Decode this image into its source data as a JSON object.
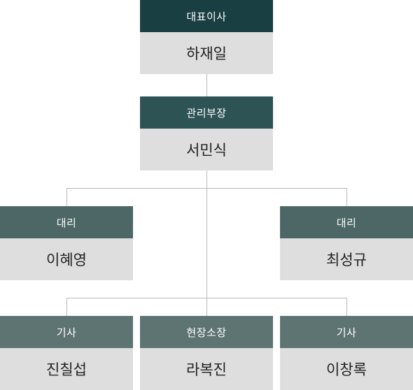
{
  "org_chart": {
    "ceo": {
      "role": "대표이사",
      "name": "하재일"
    },
    "manager": {
      "role": "관리부장",
      "name": "서민식"
    },
    "assistant_left": {
      "role": "대리",
      "name": "이혜영"
    },
    "assistant_right": {
      "role": "대리",
      "name": "최성규"
    },
    "engineer_left": {
      "role": "기사",
      "name": "진칠섭"
    },
    "site_manager": {
      "role": "현장소장",
      "name": "라복진"
    },
    "engineer_right": {
      "role": "기사",
      "name": "이창록"
    }
  }
}
